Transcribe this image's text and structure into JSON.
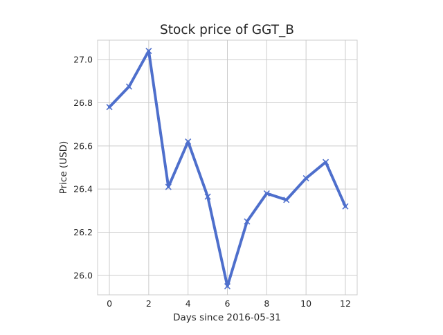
{
  "chart_data": {
    "type": "line",
    "title": "Stock price of GGT_B",
    "xlabel": "Days since 2016-05-31",
    "ylabel": "Price (USD)",
    "x": [
      0,
      1,
      2,
      3,
      4,
      5,
      6,
      7,
      8,
      9,
      10,
      11,
      12
    ],
    "series": [
      {
        "values": [
          26.78,
          26.875,
          27.04,
          26.41,
          26.62,
          26.365,
          25.95,
          26.25,
          26.38,
          26.35,
          26.45,
          26.525,
          26.32
        ],
        "color": "#4e6fcc",
        "marker": "x"
      }
    ],
    "xlim": [
      -0.6,
      12.6
    ],
    "ylim": [
      25.91,
      27.09
    ],
    "xticks": [
      0,
      2,
      4,
      6,
      8,
      10,
      12
    ],
    "yticks": [
      26.0,
      26.2,
      26.4,
      26.6,
      26.8,
      27.0
    ],
    "xtick_labels": [
      "0",
      "2",
      "4",
      "6",
      "8",
      "10",
      "12"
    ],
    "ytick_labels": [
      "26.0",
      "26.2",
      "26.4",
      "26.6",
      "26.8",
      "27.0"
    ],
    "grid": true,
    "grid_color": "#cccccc",
    "frame_color": "#cccccc"
  }
}
